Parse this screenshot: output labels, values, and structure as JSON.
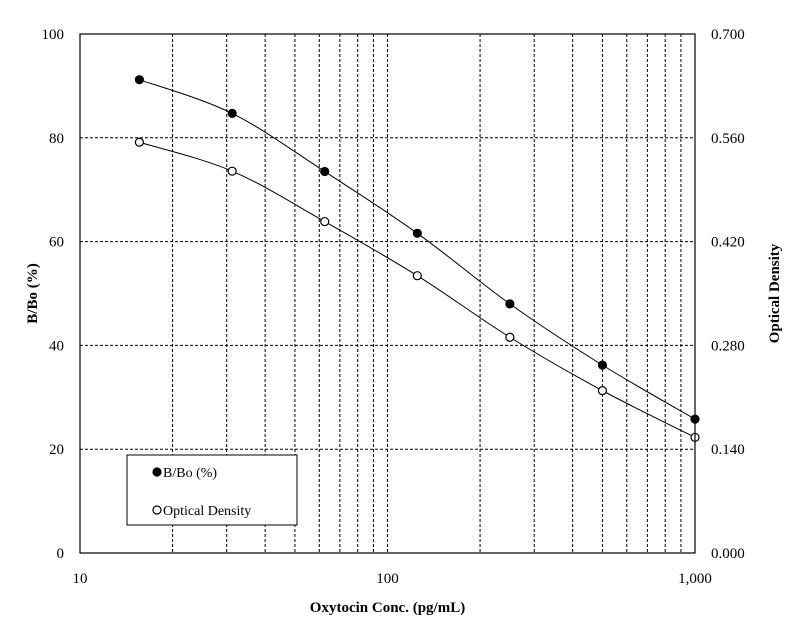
{
  "chart_data": {
    "type": "line",
    "title": "",
    "xlabel": "Oxytocin Conc. (pg/mL)",
    "ylabel": "B/Bo (%)",
    "y2label": "Optical Density",
    "xscale": "log",
    "xlim": [
      10,
      1000
    ],
    "ylim": [
      0,
      100
    ],
    "y2lim": [
      0.0,
      0.7
    ],
    "x_ticks": [
      "10",
      "100",
      "1,000"
    ],
    "y_ticks": [
      "0",
      "20",
      "40",
      "60",
      "80",
      "100"
    ],
    "y2_ticks": [
      "0.000",
      "0.140",
      "0.280",
      "0.420",
      "0.560",
      "0.700"
    ],
    "grid": true,
    "legend_position": "bottom-left",
    "x": [
      15.6,
      31.25,
      62.5,
      125,
      250,
      500,
      1000
    ],
    "series": [
      {
        "name": "B/Bo (%)",
        "axis": "left",
        "marker": "filled-circle",
        "color": "#000000",
        "values": [
          91.2,
          84.7,
          73.5,
          61.6,
          48.0,
          36.2,
          25.8
        ]
      },
      {
        "name": "Optical Density",
        "axis": "right",
        "marker": "open-circle",
        "color": "#000000",
        "values": [
          0.554,
          0.515,
          0.447,
          0.374,
          0.291,
          0.219,
          0.156
        ]
      }
    ]
  }
}
